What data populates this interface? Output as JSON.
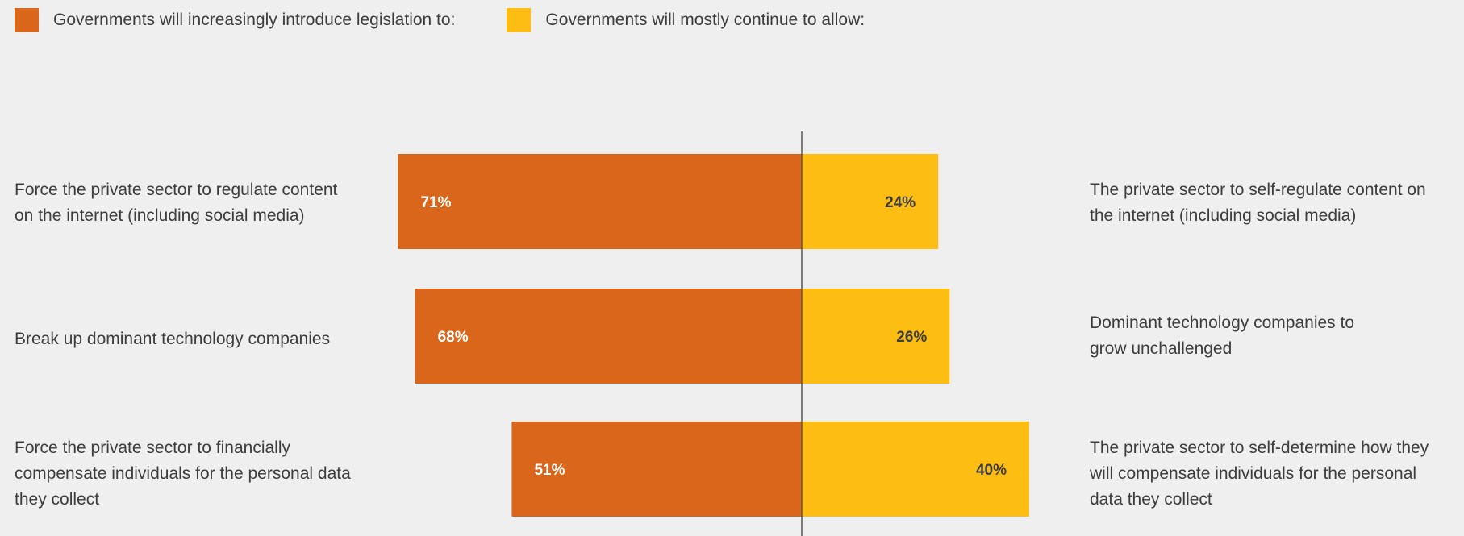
{
  "colors": {
    "legislation": "#d9661b",
    "allow": "#fdbd13",
    "axis": "#555555",
    "label_light": "#ffffff",
    "label_dark": "#3d3d3d"
  },
  "chart_data": {
    "type": "bar",
    "orientation": "horizontal-diverging",
    "series": [
      {
        "name": "Governments will increasingly introduce legislation to:",
        "values": [
          71,
          68,
          51
        ]
      },
      {
        "name": "Governments will mostly continue to allow:",
        "values": [
          24,
          26,
          40
        ]
      }
    ],
    "categories_left": [
      "Force the private sector to regulate content on the internet (including social media)",
      "Break up dominant technology companies",
      "Force the private sector to financially compensate individuals for the personal data they collect"
    ],
    "categories_right": [
      "The private sector to self-regulate content on the internet (including social media)",
      "Dominant technology companies to grow unchallenged",
      "The private sector to self-determine how they will compensate individuals for the personal data they collect"
    ],
    "value_unit": "%",
    "legend": "top-left",
    "grid": false
  }
}
